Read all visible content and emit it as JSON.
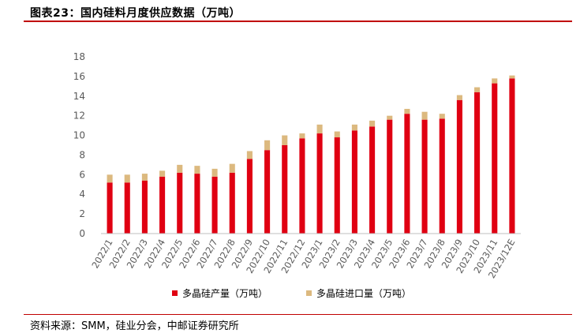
{
  "header": {
    "title": "图表23：国内硅料月度供应数据（万吨）"
  },
  "footer": {
    "source": "资料来源：SMM，硅业分会，中邮证券研究所"
  },
  "chart_data": {
    "type": "bar",
    "stacked": true,
    "title": "图表23：国内硅料月度供应数据（万吨）",
    "xlabel": "",
    "ylabel": "",
    "ylim": [
      0,
      18
    ],
    "yticks": [
      0,
      2,
      4,
      6,
      8,
      10,
      12,
      14,
      16,
      18
    ],
    "grid": false,
    "legend_position": "bottom",
    "categories": [
      "2022/1",
      "2022/2",
      "2022/3",
      "2022/4",
      "2022/5",
      "2022/6",
      "2022/7",
      "2022/8",
      "2022/9",
      "2022/10",
      "2022/11",
      "2022/12",
      "2023/1",
      "2023/2",
      "2023/3",
      "2023/4",
      "2023/5",
      "2023/6",
      "2023/7",
      "2023/8",
      "2023/9",
      "2023/10",
      "2023/11",
      "2023/12E"
    ],
    "series": [
      {
        "name": "多晶硅产量（万吨）",
        "color": "#e00012",
        "values": [
          5.2,
          5.2,
          5.4,
          5.8,
          6.2,
          6.1,
          5.8,
          6.2,
          7.6,
          8.5,
          9.0,
          9.7,
          10.2,
          9.8,
          10.5,
          10.9,
          11.6,
          12.2,
          11.6,
          11.7,
          13.6,
          14.4,
          15.3,
          15.8
        ]
      },
      {
        "name": "多晶硅进口量（万吨）",
        "color": "#dcb97f",
        "values": [
          0.8,
          0.8,
          0.7,
          0.6,
          0.8,
          0.8,
          0.8,
          0.9,
          0.8,
          1.0,
          1.0,
          0.5,
          0.9,
          0.6,
          0.6,
          0.6,
          0.4,
          0.5,
          0.8,
          0.5,
          0.5,
          0.5,
          0.5,
          0.3
        ]
      }
    ]
  }
}
